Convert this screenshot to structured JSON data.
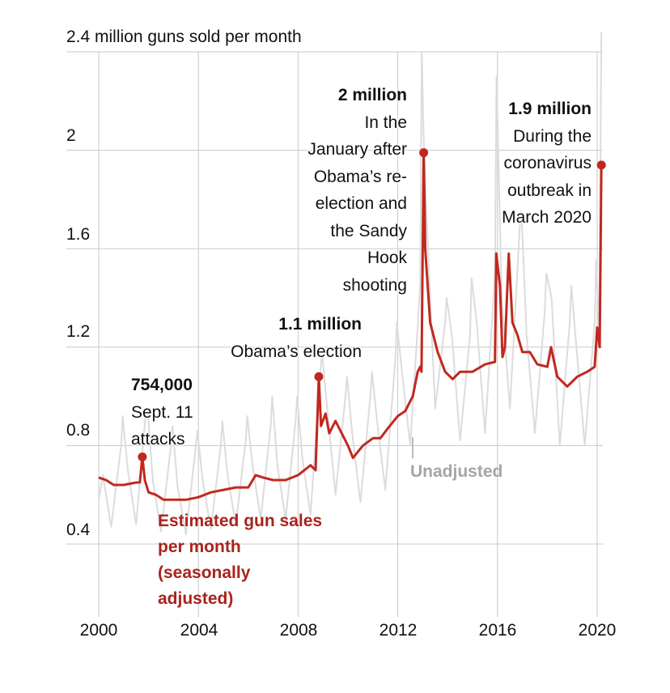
{
  "chart_data": {
    "type": "line",
    "title": "2.4 million guns sold per month",
    "xlabel": "",
    "ylabel": "",
    "xlim": [
      2000,
      2020.3
    ],
    "ylim": [
      0,
      2.4
    ],
    "grid": true,
    "x_ticks": [
      "2000",
      "2004",
      "2008",
      "2012",
      "2016",
      "2020"
    ],
    "x_tick_values": [
      2000,
      2004,
      2008,
      2012,
      2016,
      2020
    ],
    "y_ticks": [
      "0.4",
      "0.8",
      "1.2",
      "1.6",
      "2"
    ],
    "y_tick_values": [
      0.4,
      0.8,
      1.2,
      1.6,
      2.0
    ],
    "series": [
      {
        "name": "Unadjusted",
        "color": "#dcdcdc",
        "x": [
          2000.0,
          2000.17,
          2000.5,
          2000.9,
          2000.96,
          2001.17,
          2001.5,
          2001.9,
          2001.96,
          2002.17,
          2002.5,
          2002.9,
          2002.96,
          2003.17,
          2003.5,
          2003.9,
          2003.96,
          2004.17,
          2004.5,
          2004.9,
          2004.96,
          2005.17,
          2005.5,
          2005.9,
          2005.96,
          2006.17,
          2006.5,
          2006.9,
          2006.96,
          2007.17,
          2007.5,
          2007.9,
          2007.96,
          2008.17,
          2008.5,
          2008.83,
          2008.96,
          2009.17,
          2009.5,
          2009.9,
          2009.96,
          2010.17,
          2010.5,
          2010.9,
          2010.96,
          2011.17,
          2011.5,
          2011.9,
          2011.96,
          2012.17,
          2012.5,
          2012.9,
          2012.96,
          2013.04,
          2013.17,
          2013.5,
          2013.9,
          2013.96,
          2014.17,
          2014.5,
          2014.9,
          2014.96,
          2015.17,
          2015.5,
          2015.9,
          2015.96,
          2016.17,
          2016.5,
          2016.9,
          2016.96,
          2017.17,
          2017.5,
          2017.9,
          2017.96,
          2018.17,
          2018.5,
          2018.9,
          2018.96,
          2019.17,
          2019.5,
          2019.9,
          2019.96,
          2020.08,
          2020.17
        ],
        "y": [
          0.58,
          0.68,
          0.47,
          0.8,
          0.92,
          0.7,
          0.48,
          0.95,
          0.95,
          0.66,
          0.45,
          0.8,
          0.88,
          0.63,
          0.44,
          0.8,
          0.86,
          0.66,
          0.46,
          0.8,
          0.9,
          0.68,
          0.48,
          0.82,
          0.92,
          0.72,
          0.5,
          0.88,
          1.0,
          0.72,
          0.5,
          0.9,
          1.0,
          0.75,
          0.52,
          1.02,
          1.18,
          0.95,
          0.6,
          1.0,
          1.08,
          0.85,
          0.57,
          1.0,
          1.1,
          0.9,
          0.62,
          1.15,
          1.3,
          1.1,
          0.8,
          1.45,
          2.4,
          2.05,
          1.7,
          0.95,
          1.3,
          1.4,
          1.25,
          0.82,
          1.25,
          1.48,
          1.3,
          0.85,
          1.5,
          2.3,
          1.4,
          0.95,
          1.7,
          1.75,
          1.25,
          0.85,
          1.35,
          1.5,
          1.4,
          0.8,
          1.3,
          1.45,
          1.2,
          0.8,
          1.3,
          1.55,
          1.25,
          2.48
        ]
      },
      {
        "name": "Estimated gun sales per month (seasonally adjusted)",
        "color": "#c0281f",
        "x": [
          2000.0,
          2000.3,
          2000.6,
          2001.0,
          2001.5,
          2001.65,
          2001.75,
          2001.85,
          2002.0,
          2002.3,
          2002.6,
          2003.0,
          2003.5,
          2004.0,
          2004.5,
          2005.0,
          2005.5,
          2006.0,
          2006.3,
          2006.6,
          2007.0,
          2007.5,
          2008.0,
          2008.5,
          2008.7,
          2008.83,
          2008.92,
          2009.1,
          2009.25,
          2009.5,
          2010.0,
          2010.2,
          2010.6,
          2011.0,
          2011.3,
          2011.6,
          2012.0,
          2012.3,
          2012.6,
          2012.8,
          2012.9,
          2012.95,
          2013.04,
          2013.1,
          2013.3,
          2013.6,
          2013.9,
          2014.2,
          2014.5,
          2015.0,
          2015.5,
          2015.9,
          2015.95,
          2016.1,
          2016.2,
          2016.3,
          2016.45,
          2016.6,
          2016.8,
          2017.0,
          2017.3,
          2017.6,
          2018.0,
          2018.15,
          2018.4,
          2018.8,
          2019.2,
          2019.6,
          2019.9,
          2020.0,
          2020.1,
          2020.17
        ],
        "y": [
          0.67,
          0.66,
          0.64,
          0.64,
          0.65,
          0.65,
          0.754,
          0.66,
          0.61,
          0.6,
          0.58,
          0.58,
          0.58,
          0.59,
          0.61,
          0.62,
          0.63,
          0.63,
          0.68,
          0.67,
          0.66,
          0.66,
          0.68,
          0.72,
          0.7,
          1.08,
          0.88,
          0.93,
          0.85,
          0.9,
          0.8,
          0.75,
          0.8,
          0.83,
          0.83,
          0.87,
          0.92,
          0.94,
          1.0,
          1.1,
          1.12,
          1.1,
          1.99,
          1.6,
          1.3,
          1.18,
          1.1,
          1.07,
          1.1,
          1.1,
          1.13,
          1.14,
          1.58,
          1.45,
          1.16,
          1.2,
          1.58,
          1.3,
          1.25,
          1.18,
          1.18,
          1.13,
          1.12,
          1.2,
          1.08,
          1.04,
          1.08,
          1.1,
          1.12,
          1.28,
          1.2,
          1.94
        ]
      }
    ],
    "annotations": [
      {
        "x": 2001.75,
        "y": 0.754,
        "value": "754,000",
        "text": [
          "Sept. 11",
          "attacks"
        ]
      },
      {
        "x": 2008.83,
        "y": 1.08,
        "value": "1.1 million",
        "text": [
          "Obama’s election"
        ]
      },
      {
        "x": 2013.04,
        "y": 1.99,
        "value": "2 million",
        "text": [
          "In the",
          "January after",
          "Obama’s re-",
          "election and",
          "the Sandy",
          "Hook",
          "shooting"
        ]
      },
      {
        "x": 2020.17,
        "y": 1.94,
        "value": "1.9 million",
        "text": [
          "During the",
          "coronavirus",
          "outbreak in",
          "March 2020"
        ]
      }
    ],
    "series_labels": {
      "adjusted": [
        "Estimated gun sales",
        "per month",
        "(seasonally",
        "adjusted)"
      ],
      "unadjusted": "Unadjusted"
    }
  }
}
